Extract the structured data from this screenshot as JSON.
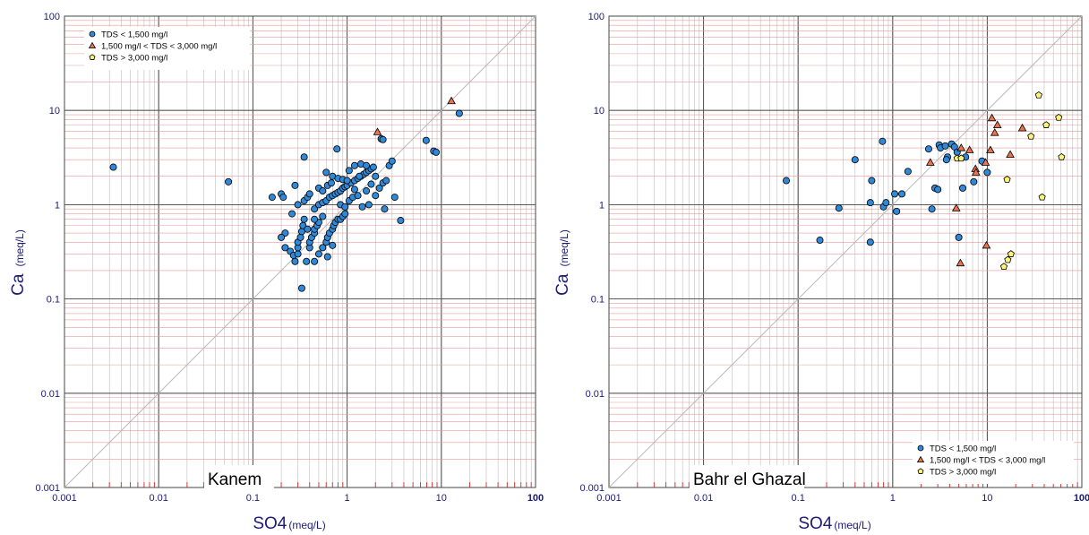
{
  "chart_data": [
    {
      "type": "scatter",
      "panel_label": "Kanem",
      "xlabel": "SO4",
      "xlabel_unit": "(meq/L)",
      "ylabel": "Ca",
      "ylabel_unit": "(meq/L)",
      "x_scale": "log",
      "y_scale": "log",
      "xlim": [
        0.001,
        100
      ],
      "ylim": [
        0.001,
        100
      ],
      "x_ticks": [
        "0.001",
        "0.01",
        "0.1",
        "1",
        "10",
        "100"
      ],
      "y_ticks": [
        "0.001",
        "0.01",
        "0.1",
        "1",
        "10",
        "100"
      ],
      "grid": true,
      "reference_line": "1:1",
      "legend_position": "top-left",
      "series": [
        {
          "name": "TDS < 1,500 mg/l",
          "marker": "circle",
          "color": "#2f88d8",
          "points": [
            [
              0.0033,
              2.5
            ],
            [
              0.055,
              1.75
            ],
            [
              0.16,
              1.2
            ],
            [
              0.2,
              1.3
            ],
            [
              0.21,
              1.2
            ],
            [
              0.22,
              0.5
            ],
            [
              0.2,
              0.45
            ],
            [
              0.22,
              0.35
            ],
            [
              0.25,
              0.32
            ],
            [
              0.27,
              0.29
            ],
            [
              0.28,
              0.25
            ],
            [
              0.3,
              0.3
            ],
            [
              0.3,
              0.35
            ],
            [
              0.3,
              0.4
            ],
            [
              0.32,
              0.45
            ],
            [
              0.33,
              0.52
            ],
            [
              0.34,
              0.6
            ],
            [
              0.35,
              0.7
            ],
            [
              0.37,
              0.25
            ],
            [
              0.4,
              0.35
            ],
            [
              0.4,
              0.4
            ],
            [
              0.42,
              0.45
            ],
            [
              0.45,
              0.5
            ],
            [
              0.45,
              0.55
            ],
            [
              0.48,
              0.6
            ],
            [
              0.5,
              0.65
            ],
            [
              0.5,
              0.3
            ],
            [
              0.55,
              0.35
            ],
            [
              0.6,
              0.4
            ],
            [
              0.62,
              0.45
            ],
            [
              0.65,
              0.5
            ],
            [
              0.7,
              0.55
            ],
            [
              0.72,
              0.6
            ],
            [
              0.75,
              0.65
            ],
            [
              0.8,
              0.7
            ],
            [
              0.85,
              0.7
            ],
            [
              0.9,
              0.75
            ],
            [
              0.95,
              0.8
            ],
            [
              0.3,
              1.0
            ],
            [
              0.35,
              1.1
            ],
            [
              0.38,
              1.2
            ],
            [
              0.4,
              1.3
            ],
            [
              0.45,
              0.9
            ],
            [
              0.5,
              1.0
            ],
            [
              0.55,
              1.05
            ],
            [
              0.6,
              1.1
            ],
            [
              0.65,
              1.2
            ],
            [
              0.7,
              1.25
            ],
            [
              0.75,
              1.3
            ],
            [
              0.8,
              1.35
            ],
            [
              0.85,
              1.4
            ],
            [
              0.9,
              1.5
            ],
            [
              0.95,
              1.55
            ],
            [
              1.0,
              1.6
            ],
            [
              1.1,
              1.7
            ],
            [
              1.2,
              1.8
            ],
            [
              1.3,
              1.9
            ],
            [
              1.4,
              2.0
            ],
            [
              1.5,
              2.1
            ],
            [
              1.6,
              2.2
            ],
            [
              1.7,
              2.3
            ],
            [
              1.8,
              2.4
            ],
            [
              1.9,
              2.5
            ],
            [
              0.6,
              2.2
            ],
            [
              0.7,
              2.0
            ],
            [
              0.8,
              1.9
            ],
            [
              0.9,
              1.85
            ],
            [
              1.0,
              1.8
            ],
            [
              1.05,
              2.3
            ],
            [
              1.2,
              2.6
            ],
            [
              1.4,
              2.7
            ],
            [
              1.6,
              2.6
            ],
            [
              0.78,
              3.9
            ],
            [
              0.35,
              3.2
            ],
            [
              0.5,
              1.5
            ],
            [
              0.55,
              1.4
            ],
            [
              0.62,
              1.6
            ],
            [
              0.68,
              1.7
            ],
            [
              0.85,
              1.0
            ],
            [
              0.95,
              0.95
            ],
            [
              1.05,
              1.1
            ],
            [
              1.15,
              1.2
            ],
            [
              1.3,
              1.25
            ],
            [
              1.45,
              0.95
            ],
            [
              1.7,
              1.0
            ],
            [
              2.0,
              1.25
            ],
            [
              2.2,
              1.5
            ],
            [
              2.4,
              1.7
            ],
            [
              2.6,
              1.8
            ],
            [
              2.8,
              2.6
            ],
            [
              3.0,
              2.9
            ],
            [
              3.2,
              1.2
            ],
            [
              2.5,
              0.9
            ],
            [
              3.7,
              0.68
            ],
            [
              2.3,
              5.0
            ],
            [
              2.4,
              4.9
            ],
            [
              6.9,
              4.8
            ],
            [
              8.3,
              3.7
            ],
            [
              8.8,
              3.6
            ],
            [
              15.5,
              9.3
            ],
            [
              0.33,
              0.13
            ],
            [
              0.45,
              0.25
            ],
            [
              0.62,
              0.28
            ],
            [
              0.7,
              0.37
            ],
            [
              0.55,
              0.75
            ],
            [
              0.45,
              0.7
            ],
            [
              0.28,
              1.6
            ],
            [
              0.26,
              0.8
            ],
            [
              0.38,
              0.55
            ],
            [
              1.2,
              1.45
            ],
            [
              1.35,
              2.0
            ],
            [
              1.6,
              1.4
            ],
            [
              1.8,
              1.65
            ],
            [
              2.0,
              2.0
            ]
          ]
        },
        {
          "name": "1,500 mg/l < TDS < 3,000 mg/l",
          "marker": "triangle",
          "color": "#ea7451",
          "points": [
            [
              2.1,
              5.9
            ],
            [
              12.8,
              12.6
            ]
          ]
        },
        {
          "name": "TDS > 3,000 mg/l",
          "marker": "pentagon",
          "color": "#fdf57a",
          "points": []
        }
      ]
    },
    {
      "type": "scatter",
      "panel_label": "Bahr el Ghazal",
      "xlabel": "SO4",
      "xlabel_unit": "(meq/L)",
      "ylabel": "Ca",
      "ylabel_unit": "(meq/L)",
      "x_scale": "log",
      "y_scale": "log",
      "xlim": [
        0.001,
        100
      ],
      "ylim": [
        0.001,
        100
      ],
      "x_ticks": [
        "0.001",
        "0.01",
        "0.1",
        "1",
        "10",
        "100"
      ],
      "y_ticks": [
        "0.001",
        "0.01",
        "0.1",
        "1",
        "10",
        "100"
      ],
      "grid": true,
      "reference_line": "1:1",
      "legend_position": "bottom-right",
      "series": [
        {
          "name": "TDS < 1,500 mg/l",
          "marker": "circle",
          "color": "#2f88d8",
          "points": [
            [
              0.075,
              1.8
            ],
            [
              0.17,
              0.42
            ],
            [
              0.27,
              0.92
            ],
            [
              0.4,
              3.0
            ],
            [
              0.58,
              1.05
            ],
            [
              0.6,
              1.8
            ],
            [
              0.58,
              0.4
            ],
            [
              0.78,
              4.7
            ],
            [
              0.8,
              0.95
            ],
            [
              0.85,
              1.05
            ],
            [
              1.05,
              1.3
            ],
            [
              1.1,
              0.85
            ],
            [
              1.25,
              1.3
            ],
            [
              1.45,
              2.25
            ],
            [
              2.4,
              3.9
            ],
            [
              2.6,
              0.9
            ],
            [
              2.8,
              1.5
            ],
            [
              3.0,
              1.45
            ],
            [
              3.1,
              4.3
            ],
            [
              3.2,
              4.0
            ],
            [
              3.6,
              4.2
            ],
            [
              3.8,
              3.2
            ],
            [
              4.2,
              4.4
            ],
            [
              4.5,
              4.1
            ],
            [
              5.0,
              0.45
            ],
            [
              5.5,
              1.5
            ],
            [
              5.9,
              3.2
            ],
            [
              7.2,
              1.75
            ],
            [
              8.8,
              2.9
            ],
            [
              10.0,
              2.2
            ],
            [
              3.7,
              3.0
            ],
            [
              4.8,
              3.6
            ]
          ]
        },
        {
          "name": "1,500 mg/l < TDS < 3,000 mg/l",
          "marker": "triangle",
          "color": "#ea7451",
          "points": [
            [
              2.5,
              2.8
            ],
            [
              4.7,
              0.92
            ],
            [
              5.2,
              0.24
            ],
            [
              5.3,
              4.0
            ],
            [
              6.5,
              3.8
            ],
            [
              7.5,
              2.4
            ],
            [
              7.6,
              2.2
            ],
            [
              9.6,
              2.8
            ],
            [
              9.8,
              0.37
            ],
            [
              10.8,
              3.8
            ],
            [
              11.2,
              8.3
            ],
            [
              12.0,
              5.8
            ],
            [
              12.8,
              7.0
            ],
            [
              17.5,
              3.4
            ],
            [
              23.5,
              6.5
            ]
          ]
        },
        {
          "name": "TDS > 3,000 mg/l",
          "marker": "pentagon",
          "color": "#fdf57a",
          "points": [
            [
              4.8,
              3.1
            ],
            [
              5.3,
              3.1
            ],
            [
              15.0,
              0.22
            ],
            [
              16.5,
              0.26
            ],
            [
              17.8,
              0.3
            ],
            [
              16.2,
              1.85
            ],
            [
              29.0,
              5.3
            ],
            [
              35.0,
              14.5
            ],
            [
              38.0,
              1.2
            ],
            [
              42.0,
              7.0
            ],
            [
              57.0,
              8.4
            ],
            [
              61.0,
              3.2
            ]
          ]
        }
      ]
    }
  ]
}
